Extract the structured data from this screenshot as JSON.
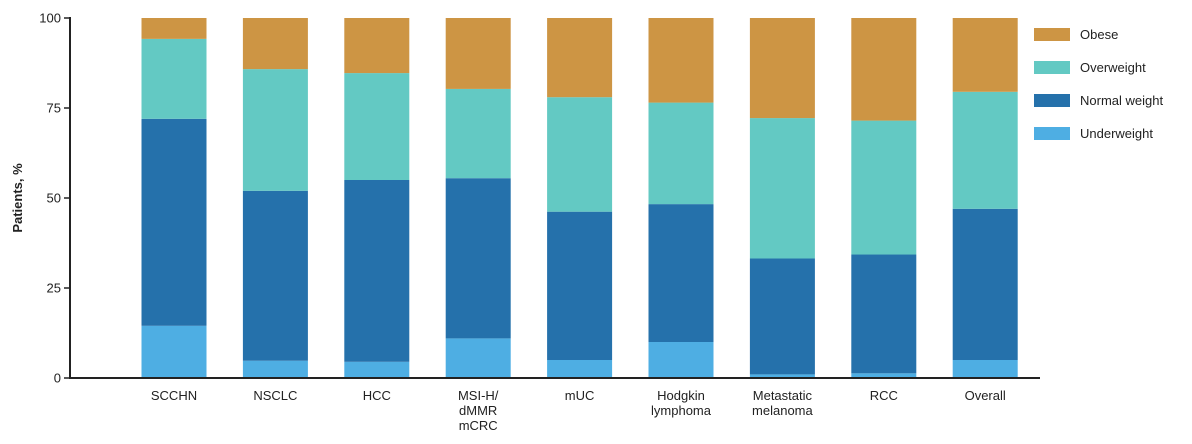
{
  "chart_data": {
    "type": "bar",
    "stacked": true,
    "ylabel": "Patients, %",
    "xlabel": "",
    "ylim": [
      0,
      100
    ],
    "yticks": [
      0,
      25,
      50,
      75,
      100
    ],
    "grid": false,
    "legend_position": "right",
    "categories": [
      [
        "SCCHN"
      ],
      [
        "NSCLC"
      ],
      [
        "HCC"
      ],
      [
        "MSI-H/",
        "dMMR",
        "mCRC"
      ],
      [
        "mUC"
      ],
      [
        "Hodgkin",
        "lymphoma"
      ],
      [
        "Metastatic",
        "melanoma"
      ],
      [
        "RCC"
      ],
      [
        "Overall"
      ]
    ],
    "series": [
      {
        "name": "Underweight",
        "color": "#4eaee3",
        "values": [
          14.5,
          4.8,
          4.5,
          11.0,
          5.0,
          10.0,
          1.0,
          1.3,
          5.0
        ]
      },
      {
        "name": "Normal weight",
        "color": "#2571ab",
        "values": [
          57.5,
          47.2,
          50.5,
          44.5,
          41.2,
          38.3,
          32.2,
          33.0,
          42.0
        ]
      },
      {
        "name": "Overweight",
        "color": "#63c9c3",
        "values": [
          22.2,
          33.8,
          29.7,
          24.8,
          31.8,
          28.2,
          39.0,
          37.2,
          32.5
        ]
      },
      {
        "name": "Obese",
        "color": "#cd9544",
        "values": [
          5.8,
          14.2,
          15.3,
          19.7,
          22.0,
          23.5,
          27.8,
          28.5,
          20.5
        ]
      }
    ],
    "legend_order": [
      "Obese",
      "Overweight",
      "Normal weight",
      "Underweight"
    ]
  }
}
